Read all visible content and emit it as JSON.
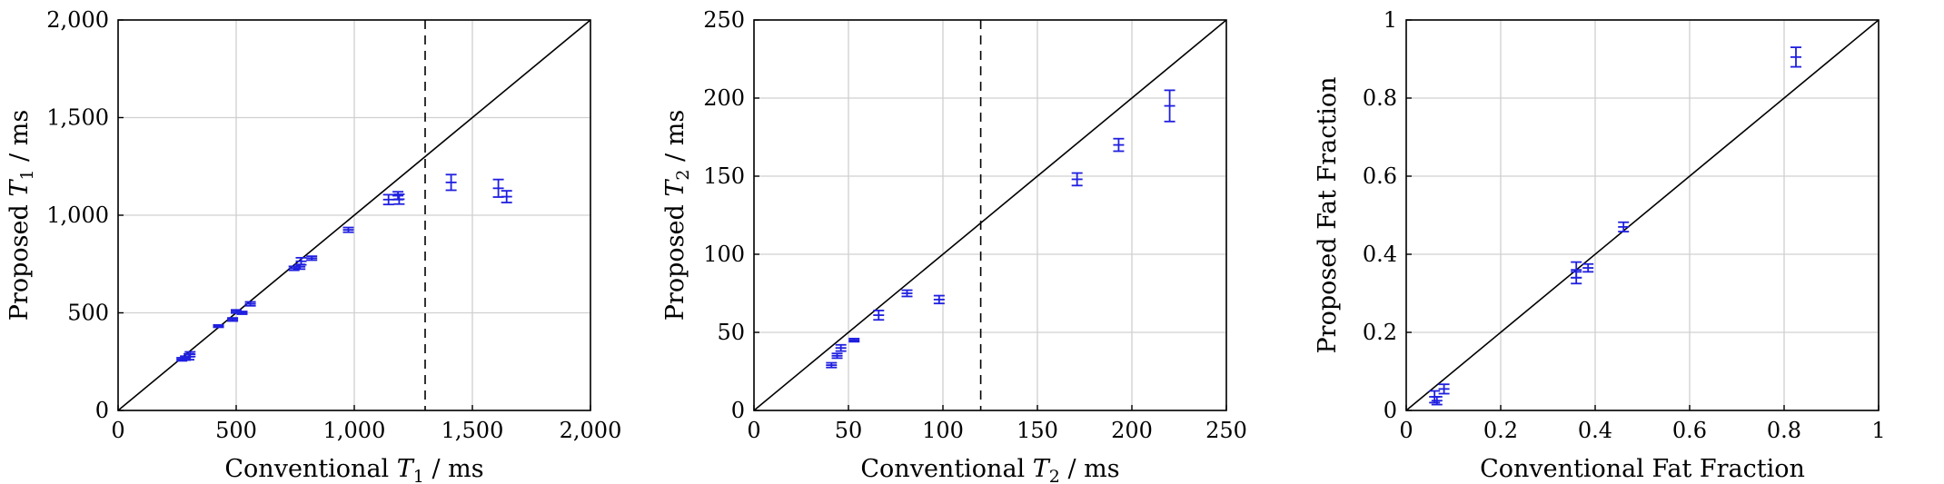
{
  "chart_data": [
    {
      "type": "scatter",
      "xlabel": {
        "pre": "Conventional ",
        "sym": "T",
        "sub": "1",
        "post": " / ms"
      },
      "ylabel": {
        "pre": "Proposed ",
        "sym": "T",
        "sub": "1",
        "post": " / ms"
      },
      "xlim": [
        0,
        2000
      ],
      "ylim": [
        0,
        2000
      ],
      "xticks": [
        0,
        500,
        1000,
        1500,
        2000
      ],
      "yticks": [
        0,
        500,
        1000,
        1500,
        2000
      ],
      "xtick_labels": [
        "0",
        "500",
        "1,000",
        "1,500",
        "2,000"
      ],
      "ytick_labels": [
        "0",
        "500",
        "1,000",
        "1,500",
        "2,000"
      ],
      "grid": true,
      "identity_line": true,
      "threshold_x": 1300,
      "marker_color": "#1f1fe0",
      "points": [
        {
          "x": 270,
          "y": 262,
          "err": 8
        },
        {
          "x": 285,
          "y": 268,
          "err": 10
        },
        {
          "x": 300,
          "y": 275,
          "err": 15
        },
        {
          "x": 305,
          "y": 288,
          "err": 12
        },
        {
          "x": 425,
          "y": 432,
          "err": 6
        },
        {
          "x": 485,
          "y": 466,
          "err": 8
        },
        {
          "x": 500,
          "y": 507,
          "err": 8
        },
        {
          "x": 525,
          "y": 500,
          "err": 7
        },
        {
          "x": 560,
          "y": 546,
          "err": 10
        },
        {
          "x": 745,
          "y": 728,
          "err": 10
        },
        {
          "x": 770,
          "y": 736,
          "err": 12
        },
        {
          "x": 775,
          "y": 764,
          "err": 18
        },
        {
          "x": 820,
          "y": 780,
          "err": 10
        },
        {
          "x": 975,
          "y": 925,
          "err": 12
        },
        {
          "x": 1145,
          "y": 1080,
          "err": 25
        },
        {
          "x": 1185,
          "y": 1100,
          "err": 20
        },
        {
          "x": 1190,
          "y": 1082,
          "err": 25
        },
        {
          "x": 1410,
          "y": 1168,
          "err": 40
        },
        {
          "x": 1610,
          "y": 1138,
          "err": 45
        },
        {
          "x": 1645,
          "y": 1095,
          "err": 30
        }
      ]
    },
    {
      "type": "scatter",
      "xlabel": {
        "pre": "Conventional ",
        "sym": "T",
        "sub": "2",
        "post": " / ms"
      },
      "ylabel": {
        "pre": "Proposed ",
        "sym": "T",
        "sub": "2",
        "post": " / ms"
      },
      "xlim": [
        0,
        250
      ],
      "ylim": [
        0,
        250
      ],
      "xticks": [
        0,
        50,
        100,
        150,
        200,
        250
      ],
      "yticks": [
        0,
        50,
        100,
        150,
        200,
        250
      ],
      "xtick_labels": [
        "0",
        "50",
        "100",
        "150",
        "200",
        "250"
      ],
      "ytick_labels": [
        "0",
        "50",
        "100",
        "150",
        "200",
        "250"
      ],
      "grid": true,
      "identity_line": true,
      "threshold_x": 120,
      "marker_color": "#1f1fe0",
      "points": [
        {
          "x": 41,
          "y": 29,
          "err": 1.5
        },
        {
          "x": 44,
          "y": 35,
          "err": 1.5
        },
        {
          "x": 46,
          "y": 40,
          "err": 2
        },
        {
          "x": 53,
          "y": 45,
          "err": 1
        },
        {
          "x": 66,
          "y": 61,
          "err": 3
        },
        {
          "x": 81,
          "y": 75,
          "err": 2
        },
        {
          "x": 98,
          "y": 71,
          "err": 2.5
        },
        {
          "x": 171,
          "y": 148,
          "err": 4
        },
        {
          "x": 193,
          "y": 170,
          "err": 4
        },
        {
          "x": 220,
          "y": 195,
          "err": 10
        }
      ]
    },
    {
      "type": "scatter",
      "xlabel": {
        "pre": "Conventional Fat Fraction",
        "sym": "",
        "sub": "",
        "post": ""
      },
      "ylabel": {
        "pre": "Proposed Fat Fraction",
        "sym": "",
        "sub": "",
        "post": ""
      },
      "xlim": [
        0,
        1
      ],
      "ylim": [
        0,
        1
      ],
      "xticks": [
        0,
        0.2,
        0.4,
        0.6,
        0.8,
        1
      ],
      "yticks": [
        0,
        0.2,
        0.4,
        0.6,
        0.8,
        1
      ],
      "xtick_labels": [
        "0",
        "0.2",
        "0.4",
        "0.6",
        "0.8",
        "1"
      ],
      "ytick_labels": [
        "0",
        "0.2",
        "0.4",
        "0.6",
        "0.8",
        "1"
      ],
      "grid": true,
      "identity_line": true,
      "threshold_x": null,
      "marker_color": "#1f1fe0",
      "points": [
        {
          "x": 0.06,
          "y": 0.035,
          "err": 0.015
        },
        {
          "x": 0.065,
          "y": 0.025,
          "err": 0.01
        },
        {
          "x": 0.08,
          "y": 0.055,
          "err": 0.012
        },
        {
          "x": 0.36,
          "y": 0.36,
          "err": 0.02
        },
        {
          "x": 0.36,
          "y": 0.34,
          "err": 0.015
        },
        {
          "x": 0.385,
          "y": 0.365,
          "err": 0.01
        },
        {
          "x": 0.46,
          "y": 0.47,
          "err": 0.012
        },
        {
          "x": 0.825,
          "y": 0.905,
          "err": 0.025
        }
      ]
    }
  ]
}
